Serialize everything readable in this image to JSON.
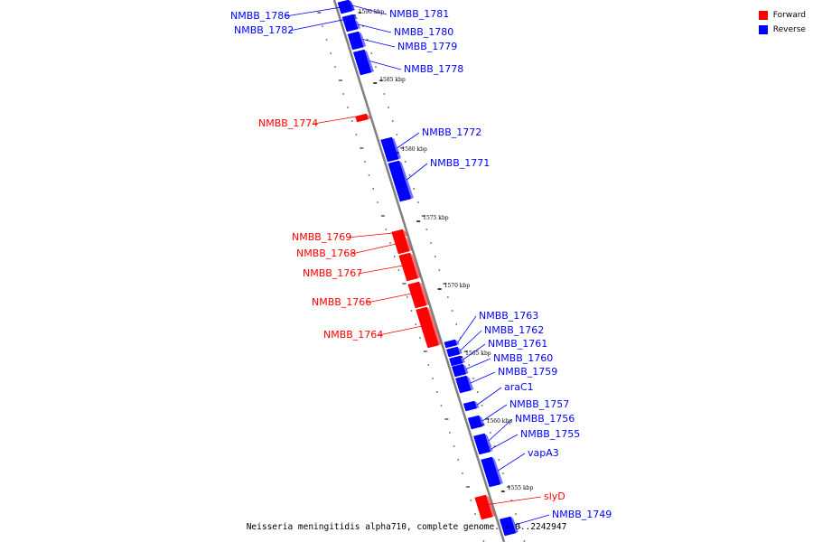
{
  "legend": {
    "forward": {
      "label": "Forward",
      "color": "#ff0000"
    },
    "reverse": {
      "label": "Reverse",
      "color": "#0000ff"
    }
  },
  "caption": "Neisseria meningitidis alpha710, complete genome. - 0..2242947",
  "kbp_marks": [
    "1590 kbp",
    "1585 kbp",
    "1580 kbp",
    "1575 kbp",
    "1570 kbp",
    "1565 kbp",
    "1560 kbp",
    "1555 kbp"
  ],
  "genes": [
    {
      "name": "NMBB_1786",
      "strand": "reverse"
    },
    {
      "name": "NMBB_1782",
      "strand": "reverse"
    },
    {
      "name": "NMBB_1781",
      "strand": "reverse"
    },
    {
      "name": "NMBB_1780",
      "strand": "reverse"
    },
    {
      "name": "NMBB_1779",
      "strand": "reverse"
    },
    {
      "name": "NMBB_1778",
      "strand": "reverse"
    },
    {
      "name": "NMBB_1774",
      "strand": "forward"
    },
    {
      "name": "NMBB_1772",
      "strand": "reverse"
    },
    {
      "name": "NMBB_1771",
      "strand": "reverse"
    },
    {
      "name": "NMBB_1769",
      "strand": "forward"
    },
    {
      "name": "NMBB_1768",
      "strand": "forward"
    },
    {
      "name": "NMBB_1767",
      "strand": "forward"
    },
    {
      "name": "NMBB_1766",
      "strand": "forward"
    },
    {
      "name": "NMBB_1764",
      "strand": "forward"
    },
    {
      "name": "NMBB_1763",
      "strand": "reverse"
    },
    {
      "name": "NMBB_1762",
      "strand": "reverse"
    },
    {
      "name": "NMBB_1761",
      "strand": "reverse"
    },
    {
      "name": "NMBB_1760",
      "strand": "reverse"
    },
    {
      "name": "NMBB_1759",
      "strand": "reverse"
    },
    {
      "name": "araC1",
      "strand": "reverse"
    },
    {
      "name": "NMBB_1757",
      "strand": "reverse"
    },
    {
      "name": "NMBB_1756",
      "strand": "reverse"
    },
    {
      "name": "NMBB_1755",
      "strand": "reverse"
    },
    {
      "name": "vapA3",
      "strand": "reverse"
    },
    {
      "name": "slyD",
      "strand": "forward"
    },
    {
      "name": "NMBB_1749",
      "strand": "reverse"
    }
  ]
}
